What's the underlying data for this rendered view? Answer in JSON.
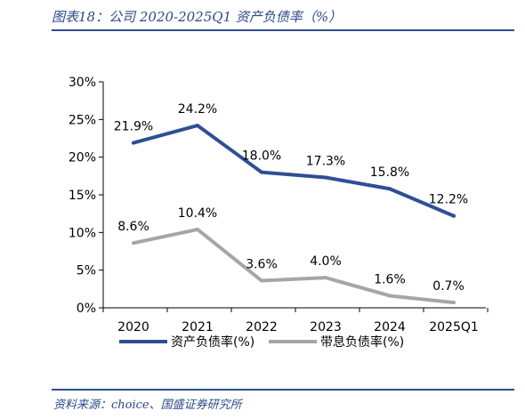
{
  "header": {
    "title": "图表18：公司 2020-2025Q1 资产负债率（%）"
  },
  "footer": {
    "source": "资料来源：choice、国盛证券研究所"
  },
  "colors": {
    "accent": "#2e4d8c",
    "series_1": "#2f4f95",
    "series_2": "#a6a6a6"
  },
  "chart_data": {
    "type": "line",
    "categories": [
      "2020",
      "2021",
      "2022",
      "2023",
      "2024",
      "2025Q1"
    ],
    "y_ticks": [
      "0%",
      "5%",
      "10%",
      "15%",
      "20%",
      "25%",
      "30%"
    ],
    "ylim": [
      0,
      30
    ],
    "grid": false,
    "legend_position": "bottom",
    "series": [
      {
        "name": "资产负债率(%)",
        "values": [
          21.9,
          24.2,
          18.0,
          17.3,
          15.8,
          12.2
        ],
        "labels": [
          "21.9%",
          "24.2%",
          "18.0%",
          "17.3%",
          "15.8%",
          "12.2%"
        ],
        "color": "#2f4f95"
      },
      {
        "name": "带息负债率(%)",
        "values": [
          8.6,
          10.4,
          3.6,
          4.0,
          1.6,
          0.7
        ],
        "labels": [
          "8.6%",
          "10.4%",
          "3.6%",
          "4.0%",
          "1.6%",
          "0.7%"
        ],
        "color": "#a6a6a6"
      }
    ]
  }
}
